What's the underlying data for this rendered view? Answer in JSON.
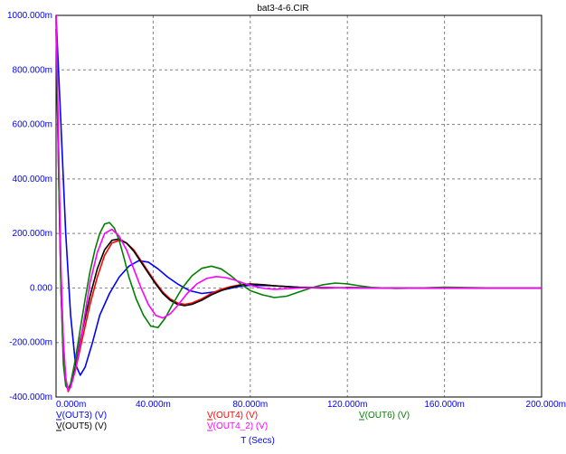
{
  "chart_data": {
    "type": "line",
    "title": "bat3-4-6.CIR",
    "xlabel": "T (Secs)",
    "xlim": [
      0,
      200
    ],
    "ylim": [
      -400,
      1000
    ],
    "x_ticks": [
      "0.000m",
      "40.000m",
      "80.000m",
      "120.000m",
      "160.000m",
      "200.000m"
    ],
    "x_tick_values": [
      0,
      40,
      80,
      120,
      160,
      200
    ],
    "y_ticks": [
      "-400.000m",
      "-200.000m",
      "0.000",
      "200.000m",
      "400.000m",
      "600.000m",
      "800.000m",
      "1000.000m"
    ],
    "y_tick_values": [
      -400,
      -200,
      0,
      200,
      400,
      600,
      800,
      1000
    ],
    "grid": true,
    "x_unit": "ms",
    "y_unit": "mV",
    "legend_rows": [
      [
        {
          "label": "V(OUT3) (V)",
          "color": "#0000ff",
          "slot": 0
        },
        {
          "label": "V(OUT4) (V)",
          "color": "#ff0000",
          "slot": 1
        },
        {
          "label": "V(OUT6) (V)",
          "color": "#008000",
          "slot": 2
        }
      ],
      [
        {
          "label": "V(OUT5) (V)",
          "color": "#000000",
          "slot": 0
        },
        {
          "label": "V(OUT4_2) (V)",
          "color": "#ff00ff",
          "slot": 1
        }
      ]
    ],
    "series": [
      {
        "label": "V(OUT3) (V)",
        "color": "#0000ff",
        "x": [
          0,
          2,
          4,
          6,
          8,
          10,
          12,
          15,
          18,
          22,
          26,
          30,
          34,
          38,
          42,
          46,
          50,
          55,
          60,
          65,
          70,
          75,
          80,
          90,
          100,
          120,
          150,
          200
        ],
        "y": [
          1000,
          600,
          200,
          -100,
          -280,
          -320,
          -290,
          -200,
          -100,
          -20,
          40,
          80,
          100,
          95,
          70,
          40,
          15,
          -10,
          -20,
          -15,
          -5,
          5,
          10,
          8,
          3,
          0,
          0,
          0
        ]
      },
      {
        "label": "V(OUT4) (V)",
        "color": "#ff0000",
        "x": [
          0,
          1,
          2,
          3,
          4,
          5,
          6,
          7,
          8,
          9,
          10,
          12,
          14,
          17,
          20,
          23,
          26,
          29,
          32,
          35,
          38,
          41,
          44,
          47,
          50,
          53,
          56,
          60,
          64,
          68,
          72,
          76,
          80,
          85,
          90,
          100,
          110,
          120,
          140,
          170,
          200
        ],
        "y": [
          1000,
          500,
          50,
          -200,
          -330,
          -380,
          -360,
          -330,
          -300,
          -260,
          -220,
          -140,
          -60,
          40,
          120,
          165,
          175,
          165,
          140,
          100,
          60,
          20,
          -15,
          -40,
          -55,
          -60,
          -55,
          -40,
          -20,
          -5,
          5,
          12,
          15,
          12,
          8,
          2,
          0,
          1,
          0,
          0,
          0
        ]
      },
      {
        "label": "V(OUT5) (V)",
        "color": "#000000",
        "x": [
          0,
          1,
          2,
          3,
          4,
          5,
          6,
          7,
          8,
          9,
          10,
          12,
          14,
          17,
          20,
          23,
          26,
          29,
          32,
          35,
          38,
          41,
          44,
          47,
          50,
          53,
          56,
          60,
          64,
          68,
          72,
          76,
          80,
          85,
          90,
          100,
          110,
          120,
          140,
          170,
          200
        ],
        "y": [
          950,
          450,
          0,
          -250,
          -350,
          -370,
          -355,
          -330,
          -290,
          -240,
          -190,
          -110,
          -30,
          70,
          140,
          175,
          180,
          165,
          135,
          95,
          55,
          15,
          -20,
          -45,
          -60,
          -65,
          -60,
          -45,
          -25,
          -10,
          2,
          10,
          14,
          12,
          8,
          2,
          0,
          1,
          0,
          0,
          0
        ]
      },
      {
        "label": "V(OUT6) (V)",
        "color": "#008000",
        "x": [
          0,
          1,
          2,
          3,
          4,
          5,
          6,
          8,
          10,
          12,
          14,
          16,
          18,
          20,
          22,
          24,
          26,
          28,
          30,
          33,
          36,
          39,
          42,
          45,
          48,
          52,
          56,
          60,
          64,
          68,
          72,
          76,
          80,
          85,
          90,
          95,
          100,
          105,
          110,
          115,
          120,
          125,
          130,
          140,
          150,
          160,
          180,
          200
        ],
        "y": [
          980,
          450,
          0,
          -280,
          -360,
          -370,
          -350,
          -260,
          -150,
          -40,
          60,
          140,
          200,
          235,
          240,
          220,
          175,
          110,
          40,
          -40,
          -100,
          -140,
          -145,
          -110,
          -60,
          0,
          45,
          72,
          80,
          70,
          45,
          15,
          -10,
          -25,
          -35,
          -30,
          -15,
          0,
          12,
          18,
          15,
          8,
          2,
          -2,
          0,
          3,
          0,
          0
        ]
      },
      {
        "label": "V(OUT4_2) (V)",
        "color": "#ff00ff",
        "x": [
          0,
          1,
          2,
          3,
          4,
          5,
          6,
          8,
          10,
          12,
          14,
          17,
          20,
          23,
          26,
          29,
          32,
          35,
          38,
          41,
          44,
          47,
          50,
          54,
          58,
          62,
          66,
          70,
          74,
          78,
          82,
          86,
          90,
          95,
          100,
          110,
          120,
          140,
          170,
          200
        ],
        "y": [
          1000,
          550,
          80,
          -200,
          -330,
          -375,
          -365,
          -300,
          -200,
          -90,
          20,
          130,
          200,
          215,
          190,
          140,
          70,
          0,
          -60,
          -100,
          -110,
          -95,
          -65,
          -20,
          15,
          35,
          42,
          38,
          28,
          15,
          5,
          -2,
          -5,
          -3,
          0,
          2,
          0,
          0,
          0,
          0
        ]
      }
    ]
  }
}
